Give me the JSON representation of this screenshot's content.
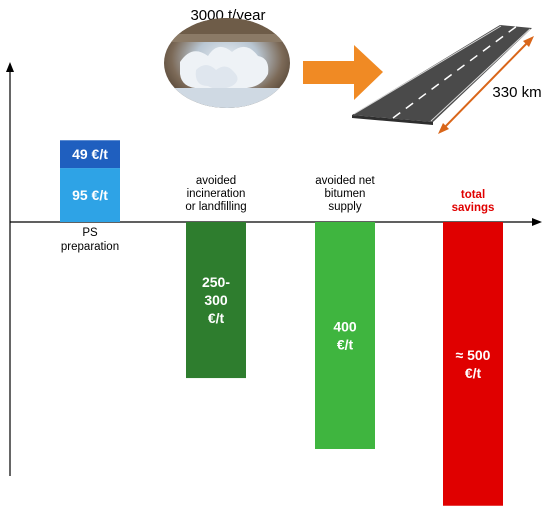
{
  "header": {
    "volume_label": "3000 t/year",
    "road_length_label": "330 km",
    "waste_image_icon": "shredded-polystyrene-image",
    "road_image_icon": "asphalt-road-image",
    "arrow_icon": "arrow-right-icon"
  },
  "colors": {
    "ps_top": "#1f5fbf",
    "ps_bottom": "#2ea3e6",
    "incineration": "#2e7d2e",
    "bitumen": "#3fb53f",
    "total": "#e00000",
    "total_label": "#e00000",
    "arrow": "#f08a24",
    "road_measure": "#d9661a"
  },
  "chart_data": {
    "type": "bar",
    "title": "",
    "xlabel": "",
    "ylabel": "",
    "unit": "€/t",
    "ylim": [
      -590,
      200
    ],
    "categories": [
      "PS preparation",
      "avoided incineration or landfilling",
      "avoided net bitumen supply",
      "total savings"
    ],
    "bars": [
      {
        "category": "PS preparation",
        "stacked": true,
        "segments": [
          {
            "value": 95,
            "label": "95 €/t",
            "color": "#2ea3e6"
          },
          {
            "value": 49,
            "label": "49 €/t",
            "color": "#1f5fbf"
          }
        ]
      },
      {
        "category": "avoided incineration or landfilling",
        "value": -275,
        "label_lines": [
          "250-",
          "300",
          "€/t"
        ],
        "color": "#2e7d2e"
      },
      {
        "category": "avoided net bitumen supply",
        "value": -400,
        "label_lines": [
          "400",
          "€/t"
        ],
        "color": "#3fb53f"
      },
      {
        "category": "total savings",
        "value": -500,
        "label_lines": [
          "≈ 500",
          "€/t"
        ],
        "color": "#e00000"
      }
    ],
    "category_labels": [
      {
        "lines": [
          "PS",
          "preparation"
        ],
        "color": "#000000",
        "bold": false
      },
      {
        "lines": [
          "avoided",
          "incineration",
          "or landfilling"
        ],
        "color": "#000000",
        "bold": false
      },
      {
        "lines": [
          "avoided net",
          "bitumen",
          "supply"
        ],
        "color": "#000000",
        "bold": false
      },
      {
        "lines": [
          "total",
          "savings"
        ],
        "color": "#e00000",
        "bold": true
      }
    ],
    "grid": false,
    "legend": "none"
  }
}
